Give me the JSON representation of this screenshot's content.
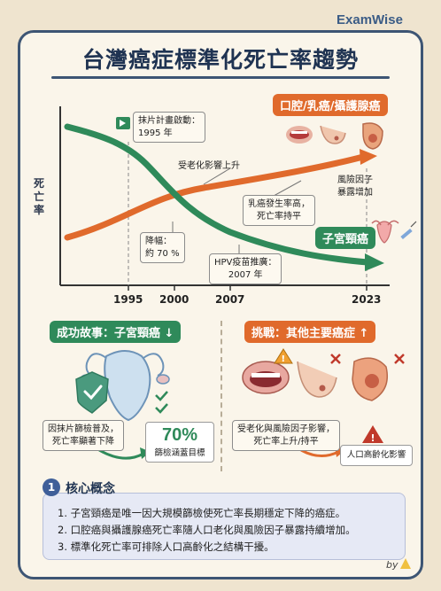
{
  "brand": "ExamWise",
  "title": "台灣癌症標準化死亡率趨勢",
  "chart": {
    "y_label": "死亡率",
    "x_ticks": [
      "1995",
      "2000",
      "2007",
      "2023"
    ],
    "notes": {
      "screening_start": "抹片計畫啟動：\n1995 年",
      "aging_rise": "受老化影響上升",
      "breast": "乳癌發生率高，\n死亡率持平",
      "risk_factors": "風險因子\n暴露增加",
      "drop": "降幅：\n約 70 %",
      "hpv": "HPV疫苗推廣：\n2007 年"
    },
    "legend_top": "口腔/乳癌/攝護腺癌",
    "legend_bottom": "子宮頸癌"
  },
  "chart_data": {
    "type": "line",
    "title": "台灣癌症標準化死亡率趨勢",
    "ylabel": "死亡率",
    "x": [
      "1995",
      "2000",
      "2007",
      "2023"
    ],
    "series": [
      {
        "name": "子宮頸癌",
        "trend": "decreasing"
      },
      {
        "name": "口腔/乳癌/攝護腺癌",
        "trend": "increasing"
      }
    ],
    "annotations": [
      "抹片計畫啟動：1995 年",
      "受老化影響上升",
      "乳癌發生率高，死亡率持平",
      "風險因子暴露增加",
      "降幅：約 70 %",
      "HPV疫苗推廣：2007 年"
    ]
  },
  "success": {
    "heading": "成功故事：子宮頸癌 ↓",
    "note": "因抹片篩檢普及，\n死亡率顯著下降",
    "stat": "70%",
    "stat_label": "篩檢涵蓋目標"
  },
  "challenge": {
    "heading": "挑戰：其他主要癌症 ↑",
    "note": "受老化與風險因子影響，\n死亡率上升/持平",
    "box_label": "人口高齡化影響"
  },
  "core": {
    "number": "1",
    "title": "核心概念",
    "items": [
      "1. 子宮頸癌是唯一因大規模篩檢使死亡率長期穩定下降的癌症。",
      "2. 口腔癌與攝護腺癌死亡率隨人口老化與風險因子暴露持續增加。",
      "3. 標準化死亡率可排除人口高齡化之結構干擾。"
    ]
  },
  "byline": "by",
  "colors": {
    "navy": "#1f3352",
    "green": "#2f8a5a",
    "orange": "#e06a2c",
    "cream": "#faf5ea"
  }
}
